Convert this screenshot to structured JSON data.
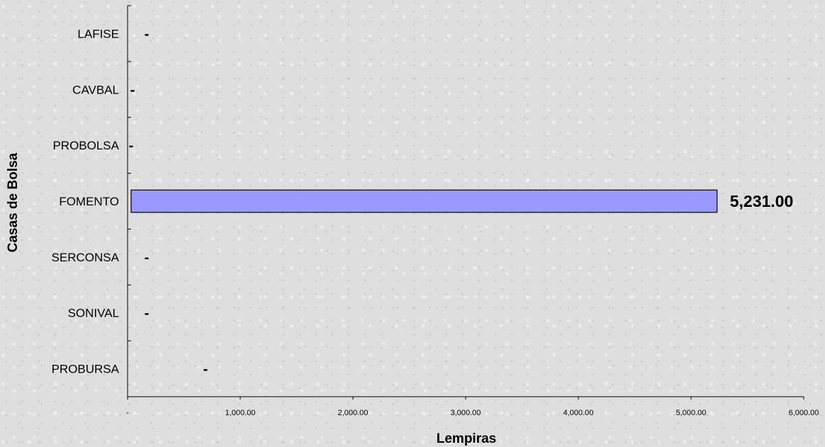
{
  "chart_data": {
    "type": "bar",
    "orientation": "horizontal",
    "categories": [
      "LAFISE",
      "CAVBAL",
      "PROBOLSA",
      "FOMENTO",
      "SERCONSA",
      "SONIVAL",
      "PROBURSA"
    ],
    "values": [
      0,
      0,
      0,
      5231,
      0,
      0,
      0
    ],
    "data_labels": [
      "-",
      "-",
      "-",
      "5,231.00",
      "-",
      "-",
      "-"
    ],
    "x_ticks": [
      "-",
      "1,000.00",
      "2,000.00",
      "3,000.00",
      "4,000.00",
      "5,000.00",
      "6,000.00"
    ],
    "xlim": [
      0,
      6000
    ],
    "xlabel": "Lempiras",
    "ylabel": "Casas de Bolsa",
    "bar_color": "#9999ff",
    "grid": false,
    "legend": "none"
  }
}
